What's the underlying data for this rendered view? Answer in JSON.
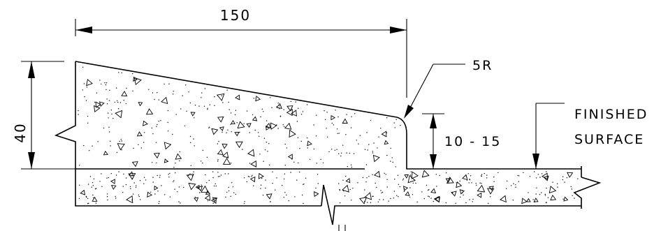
{
  "dimensions": {
    "width_label": "150",
    "height_label": "40",
    "radius_label": "5R",
    "step_label": "10 - 15"
  },
  "annotation": {
    "line1": "FINISHED",
    "line2": "SURFACE"
  }
}
